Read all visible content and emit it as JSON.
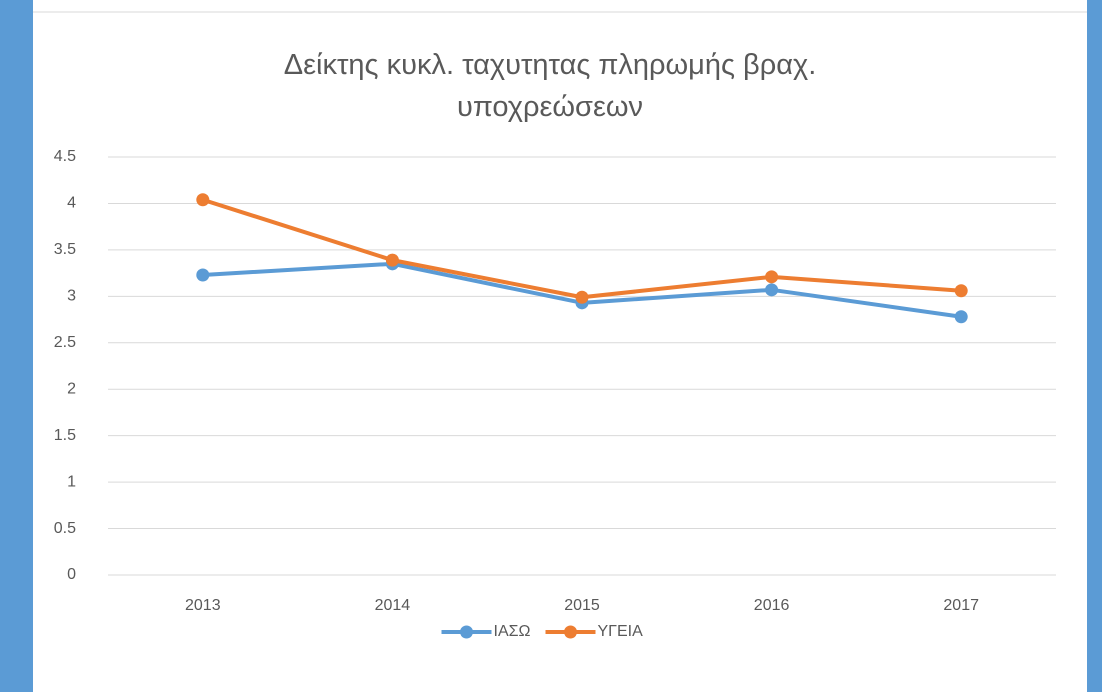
{
  "chart_data": {
    "type": "line",
    "title": "Δείκτης κυκλ. ταχυτητας πληρωμής βραχ. υποχρεώσεων",
    "categories": [
      "2013",
      "2014",
      "2015",
      "2016",
      "2017"
    ],
    "series": [
      {
        "name": "ΙΑΣΩ",
        "color": "#5b9bd5",
        "values": [
          3.23,
          3.35,
          2.93,
          3.07,
          2.78
        ]
      },
      {
        "name": "ΥΓΕΙΑ",
        "color": "#ed7d31",
        "values": [
          4.04,
          3.39,
          2.99,
          3.21,
          3.06
        ]
      }
    ],
    "ylim": [
      0,
      4.5
    ],
    "yticks": [
      0,
      0.5,
      1,
      1.5,
      2,
      2.5,
      3,
      3.5,
      4,
      4.5
    ],
    "grid": true,
    "legend": "bottom"
  }
}
